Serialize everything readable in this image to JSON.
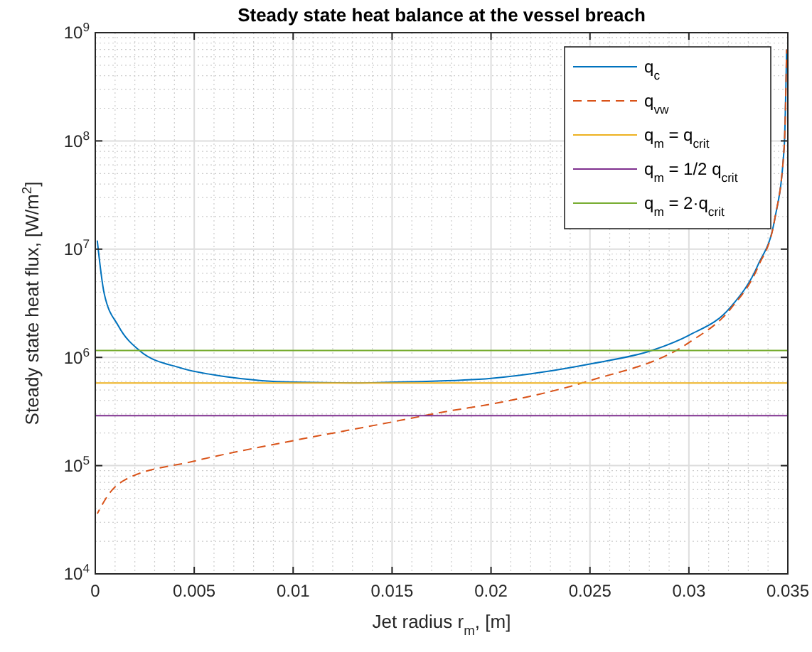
{
  "chart_data": {
    "type": "line",
    "title": "Steady state heat balance at the vessel breach",
    "xlabel": "Jet radius r$_{m}$, [m]",
    "ylabel": "Steady state heat flux, [W/m$^{2}$]",
    "xlim": [
      0,
      0.035
    ],
    "xticks": [
      0,
      0.005,
      0.01,
      0.015,
      0.02,
      0.025,
      0.03,
      0.035
    ],
    "ylim": [
      10000,
      1000000000
    ],
    "yticks": [
      {
        "value": 10000,
        "label": "10$^{4}$"
      },
      {
        "value": 100000,
        "label": "10$^{5}$"
      },
      {
        "value": 1000000,
        "label": "10$^{6}$"
      },
      {
        "value": 10000000,
        "label": "10$^{7}$"
      },
      {
        "value": 100000000,
        "label": "10$^{8}$"
      },
      {
        "value": 1000000000,
        "label": "10$^{9}$"
      }
    ],
    "log": "y",
    "grid": true,
    "legend": "top right",
    "series": [
      {
        "name": "q$_{c}$",
        "color": "#0072bd",
        "line_style": "solid",
        "x": [
          0.0001,
          0.00045,
          0.00117,
          0.00225,
          0.0043,
          0.0067,
          0.01,
          0.013,
          0.016,
          0.02,
          0.025,
          0.0282,
          0.03,
          0.0321,
          0.0335,
          0.03434,
          0.03482,
          0.03494
        ],
        "values": [
          12000000,
          3900000,
          1950000,
          1150000,
          800000,
          660000,
          590000,
          580000,
          595000,
          640000,
          870000,
          1170000,
          1600000,
          2900000,
          7200000,
          19000000,
          90000000,
          700000000
        ]
      },
      {
        "name": "q$_{vw}$",
        "color": "#d95319",
        "line_style": "dashed",
        "x": [
          0.0001,
          0.0007,
          0.0015,
          0.005,
          0.01,
          0.0146,
          0.0179,
          0.02,
          0.025,
          0.03,
          0.0321,
          0.0335,
          0.03434,
          0.03482,
          0.03494
        ],
        "values": [
          36000,
          55000,
          74000,
          110000,
          170000,
          245000,
          320000,
          370000,
          610000,
          1370000,
          2800000,
          6900000,
          19000000,
          90000000,
          700000000
        ]
      },
      {
        "name": "q$_{m}$ = q$_{crit}$",
        "color": "#edb120",
        "line_style": "solid",
        "x": [
          0,
          0.035
        ],
        "values": [
          580000,
          580000
        ]
      },
      {
        "name": "q$_{m}$ = 1/2 q$_{crit}$",
        "color": "#7e2f8e",
        "line_style": "solid",
        "x": [
          0,
          0.035
        ],
        "values": [
          290000,
          290000
        ]
      },
      {
        "name": "q$_{m}$ = 2·q$_{crit}$",
        "color": "#77ac30",
        "line_style": "solid",
        "x": [
          0,
          0.035
        ],
        "values": [
          1160000,
          1160000
        ]
      }
    ]
  }
}
